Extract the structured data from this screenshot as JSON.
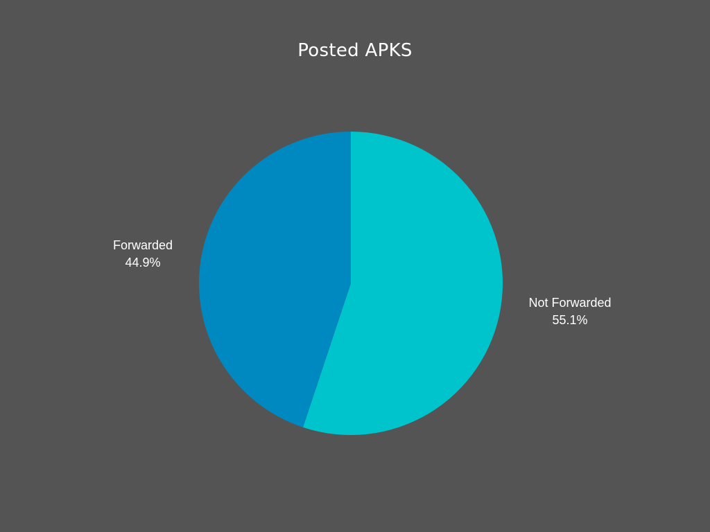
{
  "chart_data": {
    "type": "pie",
    "title": "Posted APKS",
    "slices": [
      {
        "label": "Not Forwarded",
        "value": 55.1,
        "display": "55.1%",
        "color": "#00c4cc"
      },
      {
        "label": "Forwarded",
        "value": 44.9,
        "display": "44.9%",
        "color": "#0089c1"
      }
    ],
    "start_angle": "12 o'clock",
    "direction": "clockwise",
    "legend": "none",
    "labels": "outside"
  },
  "background_color": "#545454"
}
